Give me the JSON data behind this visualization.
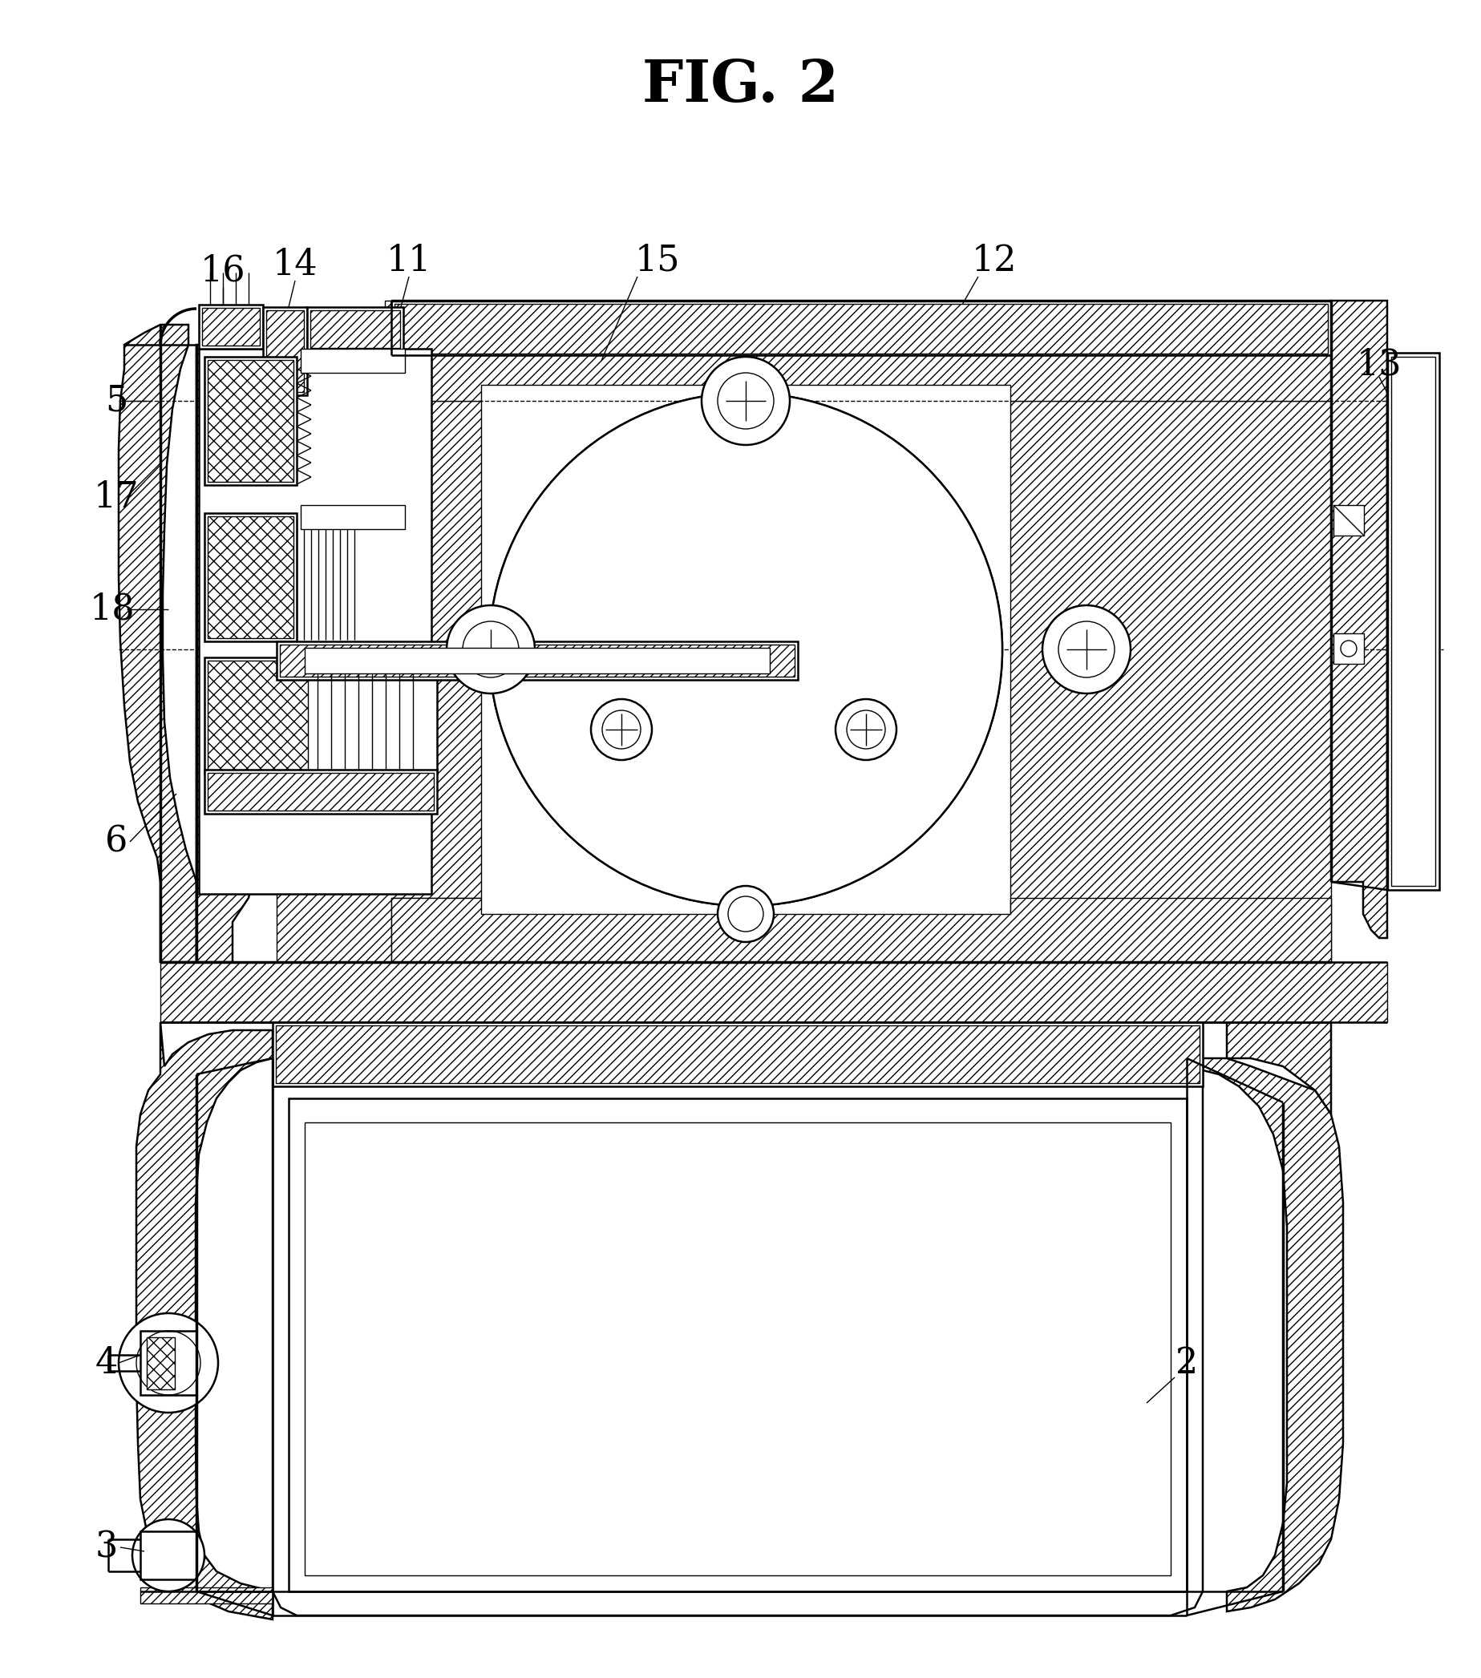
{
  "title": "FIG. 2",
  "title_fontsize": 52,
  "background_color": "#ffffff",
  "line_color": "#000000",
  "label_fontsize": 32,
  "lw_main": 1.8,
  "lw_thin": 1.0,
  "lw_thick": 2.5
}
